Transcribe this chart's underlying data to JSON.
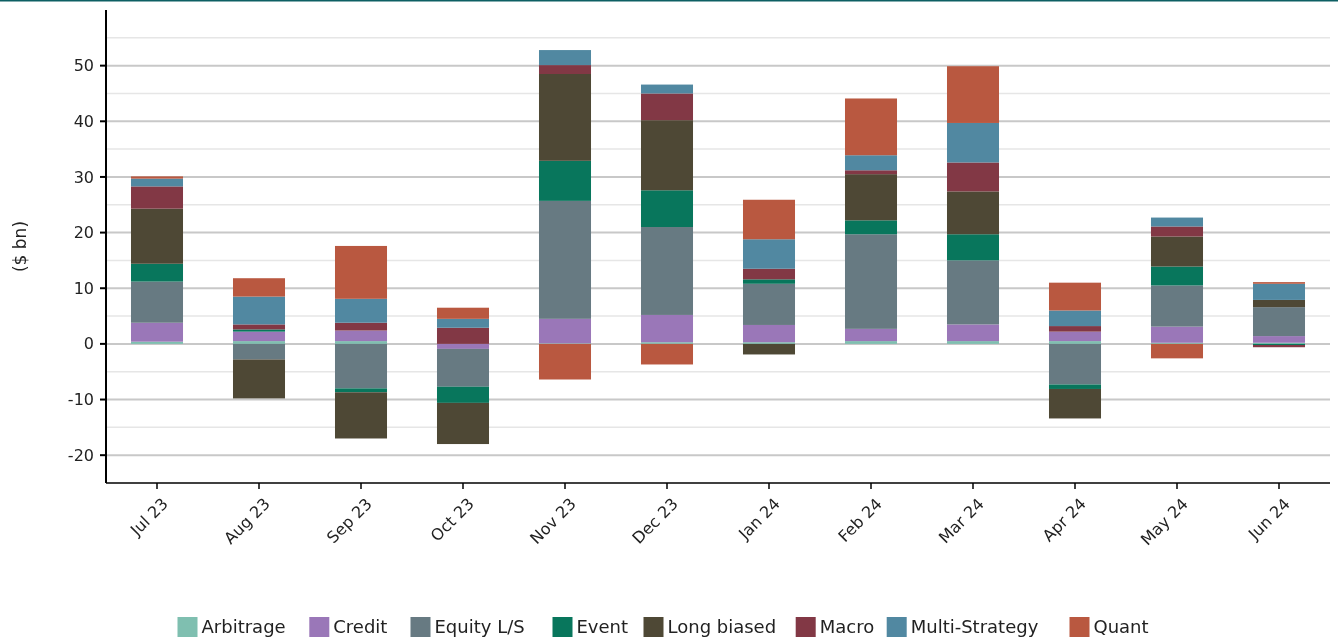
{
  "chart_data": {
    "type": "bar",
    "stacked": true,
    "ylabel": "($ bn)",
    "categories": [
      "Jul 23",
      "Aug 23",
      "Sep 23",
      "Oct 23",
      "Nov 23",
      "Dec 23",
      "Jan 24",
      "Feb 24",
      "Mar 24",
      "Apr 24",
      "May 24",
      "Jun 24"
    ],
    "series": [
      {
        "name": "Arbitrage",
        "color": "#7fbfb0",
        "values": [
          0.4,
          0.5,
          0.5,
          0,
          0.1,
          0.3,
          0.3,
          0.5,
          0.5,
          0.5,
          0.2,
          0.2
        ]
      },
      {
        "name": "Credit",
        "color": "#9a77b8",
        "values": [
          3.4,
          1.7,
          1.9,
          -0.9,
          4.4,
          4.9,
          3.1,
          2.2,
          3.0,
          1.7,
          2.9,
          1.2
        ]
      },
      {
        "name": "Equity L/S",
        "color": "#677a82",
        "values": [
          7.4,
          -2.8,
          -8.0,
          -6.8,
          21.2,
          15.8,
          7.4,
          17.0,
          11.5,
          -7.3,
          7.4,
          5.2
        ]
      },
      {
        "name": "Event",
        "color": "#08765c",
        "values": [
          3.2,
          0.4,
          -0.7,
          -2.9,
          7.2,
          6.6,
          0.8,
          2.5,
          4.7,
          -0.8,
          3.4,
          -0.2
        ]
      },
      {
        "name": "Long biased",
        "color": "#4e4835",
        "values": [
          9.9,
          -7.0,
          -8.3,
          -7.4,
          15.6,
          12.6,
          -1.9,
          8.3,
          7.7,
          -5.3,
          5.4,
          1.3
        ]
      },
      {
        "name": "Macro",
        "color": "#823845",
        "values": [
          4.0,
          0.9,
          1.4,
          2.9,
          1.6,
          4.8,
          1.9,
          0.7,
          5.2,
          1.0,
          1.8,
          -0.4
        ]
      },
      {
        "name": "Multi-Strategy",
        "color": "#5188a1",
        "values": [
          1.4,
          5.0,
          4.3,
          1.6,
          2.7,
          1.6,
          5.3,
          2.7,
          7.1,
          2.8,
          1.6,
          2.9
        ]
      },
      {
        "name": "Quant",
        "color": "#b95840",
        "values": [
          0.4,
          3.3,
          9.5,
          2.0,
          -6.4,
          -3.7,
          7.1,
          10.2,
          10.2,
          5.0,
          -2.6,
          0.3
        ]
      }
    ],
    "ylim": [
      -25,
      60
    ],
    "yticks": [
      -20,
      -10,
      0,
      10,
      20,
      30,
      40,
      50,
      {
        "value": -15,
        "label": null
      },
      {
        "value": -5,
        "label": null
      },
      {
        "value": 5,
        "label": null
      },
      {
        "value": 15,
        "label": null
      },
      {
        "value": 25,
        "label": null
      },
      {
        "value": 35,
        "label": null
      },
      {
        "value": 45,
        "label": null
      },
      {
        "value": 55,
        "label": null
      }
    ],
    "grid": "y",
    "legend": "bottom"
  }
}
